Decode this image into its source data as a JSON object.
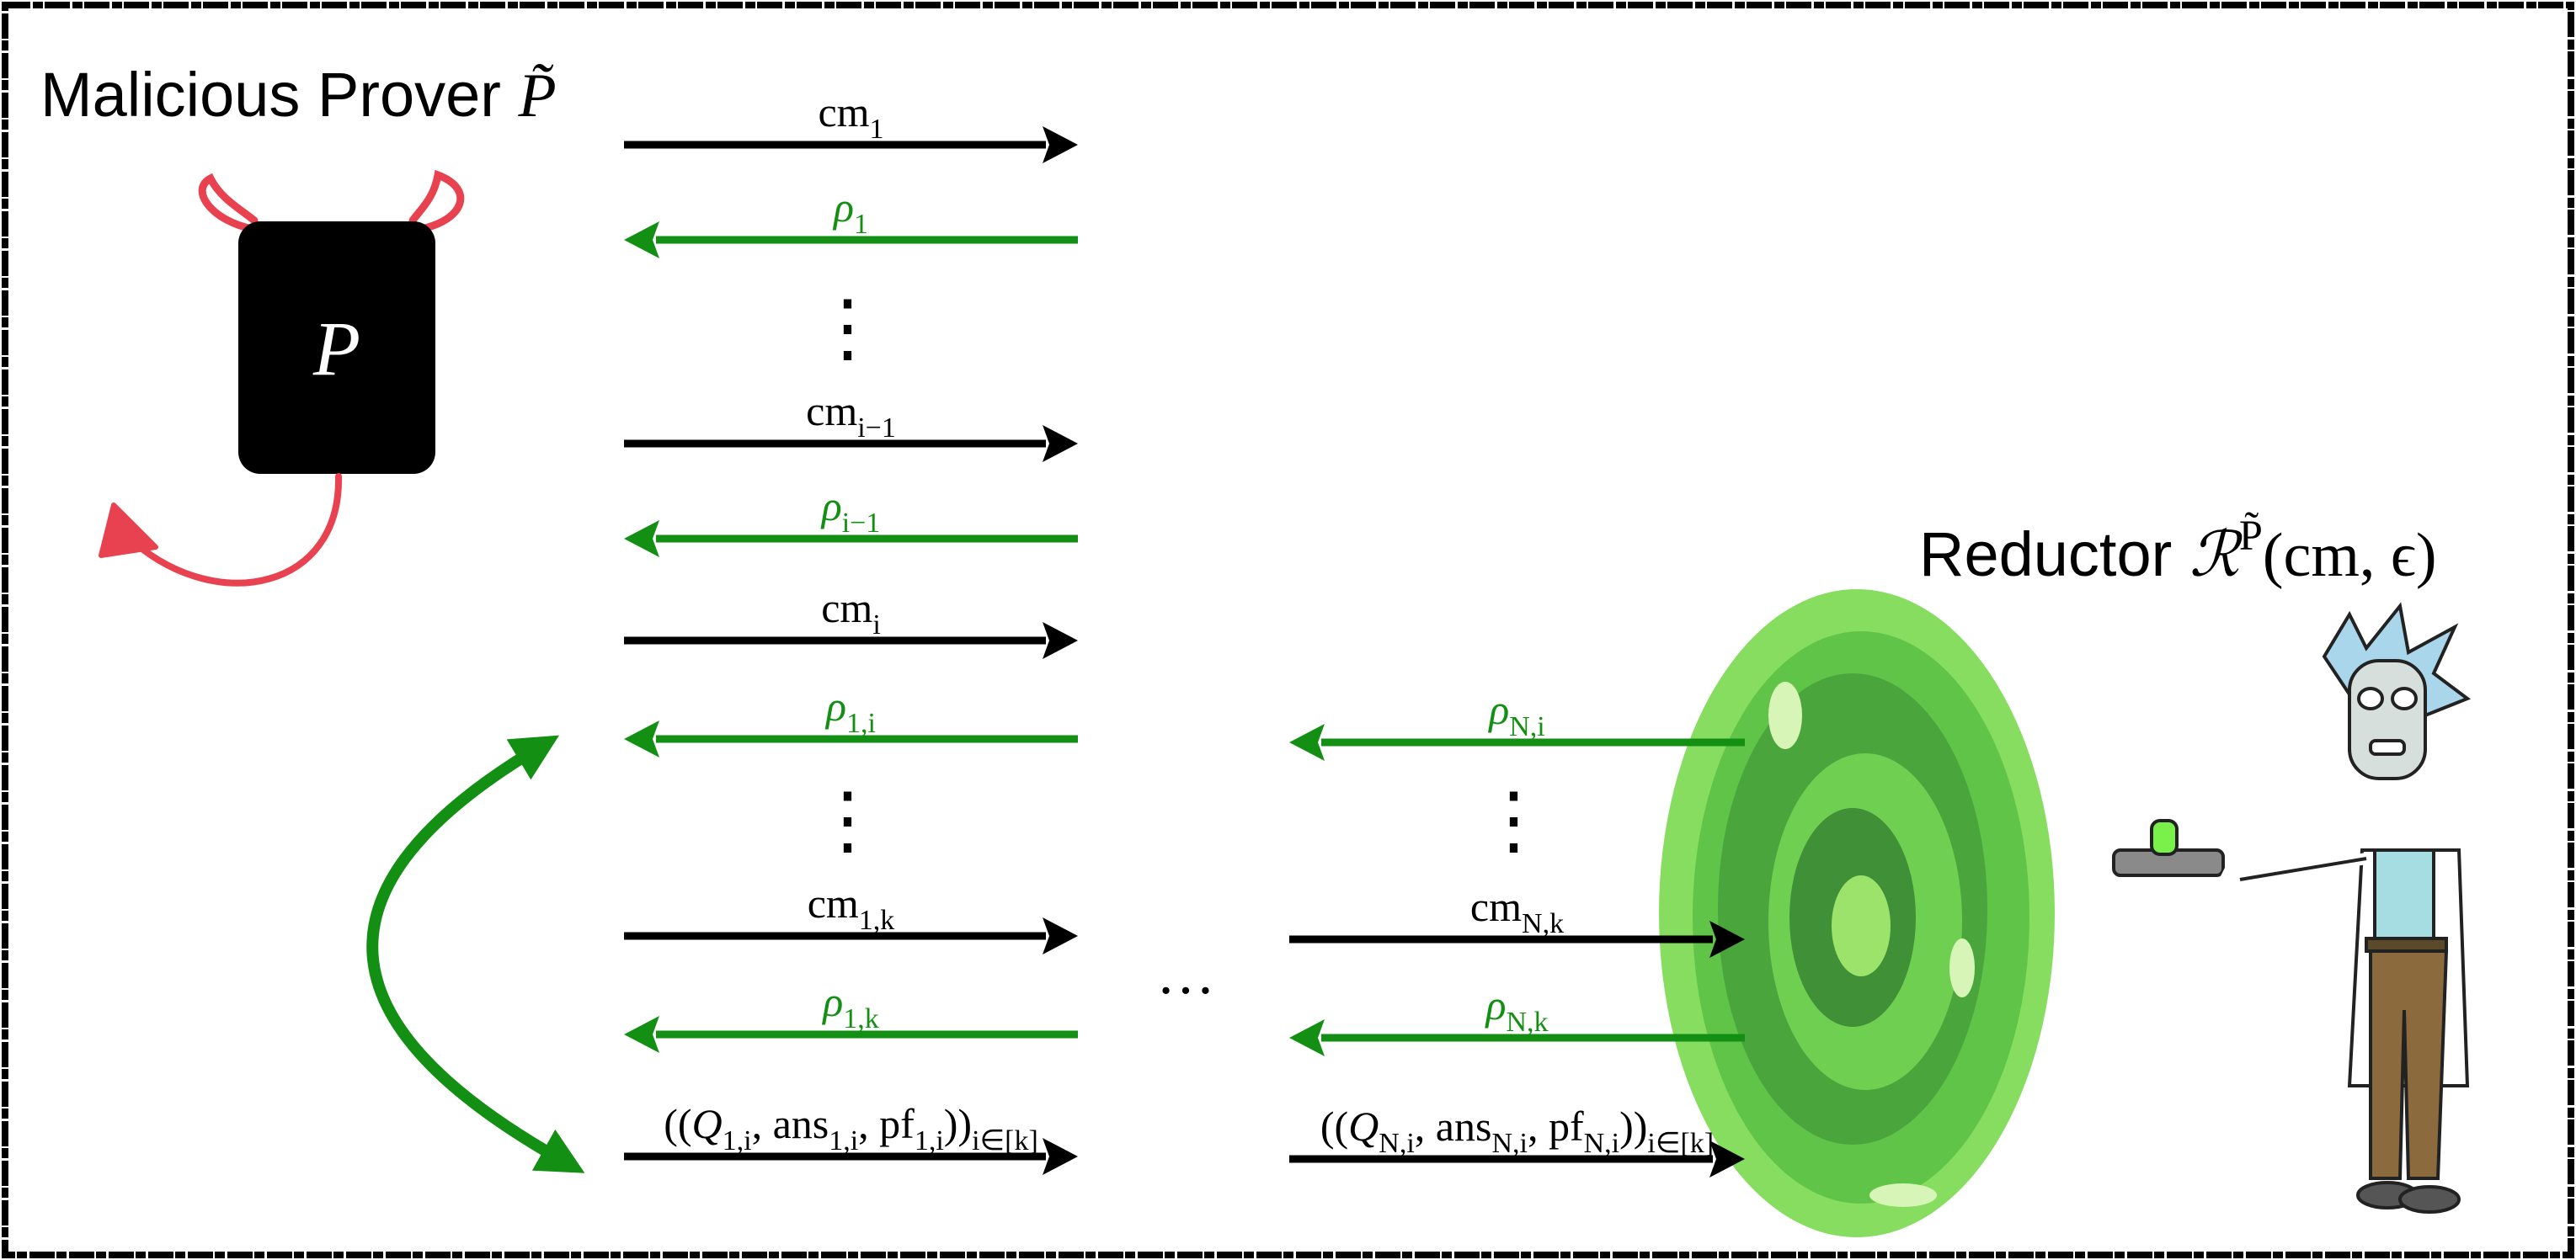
{
  "title": [
    {
      "text": "Malicious Prover ",
      "style": "sans"
    },
    {
      "text": "P̃",
      "style": "italic"
    }
  ],
  "prover_box_label": "P",
  "reductor_label": [
    {
      "text": "Reductor ",
      "style": "sans"
    },
    {
      "text": "ℛ",
      "style": "italic"
    },
    {
      "text": "P̃",
      "style": "sup"
    },
    {
      "text": "(cm, ϵ)",
      "style": "roman"
    }
  ],
  "left_column": {
    "messages": [
      {
        "color": "#000000",
        "direction": "right",
        "label": [
          {
            "text": "cm",
            "style": "roman"
          },
          {
            "text": "1",
            "style": "sub"
          }
        ]
      },
      {
        "color": "#138f13",
        "direction": "left",
        "label": [
          {
            "text": "ρ",
            "style": "italic"
          },
          {
            "text": "1",
            "style": "sub"
          }
        ]
      },
      {
        "color": "#000000",
        "direction": "right",
        "label": [
          {
            "text": "cm",
            "style": "roman"
          },
          {
            "text": "i−1",
            "style": "sub"
          }
        ]
      },
      {
        "color": "#138f13",
        "direction": "left",
        "label": [
          {
            "text": "ρ",
            "style": "italic"
          },
          {
            "text": "i−1",
            "style": "sub"
          }
        ]
      },
      {
        "color": "#000000",
        "direction": "right",
        "label": [
          {
            "text": "cm",
            "style": "roman"
          },
          {
            "text": "i",
            "style": "sub"
          }
        ]
      },
      {
        "color": "#138f13",
        "direction": "left",
        "label": [
          {
            "text": "ρ",
            "style": "italic"
          },
          {
            "text": "1,i",
            "style": "sub"
          }
        ]
      },
      {
        "color": "#000000",
        "direction": "right",
        "label": [
          {
            "text": "cm",
            "style": "roman"
          },
          {
            "text": "1,k",
            "style": "sub"
          }
        ]
      },
      {
        "color": "#138f13",
        "direction": "left",
        "label": [
          {
            "text": "ρ",
            "style": "italic"
          },
          {
            "text": "1,k",
            "style": "sub"
          }
        ]
      },
      {
        "color": "#000000",
        "direction": "right",
        "label": [
          {
            "text": "((",
            "style": "roman"
          },
          {
            "text": "Q",
            "style": "italic"
          },
          {
            "text": "1,i",
            "style": "sub"
          },
          {
            "text": ", ans",
            "style": "roman"
          },
          {
            "text": "1,i",
            "style": "sub"
          },
          {
            "text": ", pf",
            "style": "roman"
          },
          {
            "text": "1,i",
            "style": "sub"
          },
          {
            "text": "))",
            "style": "roman"
          },
          {
            "text": "i∈[k]",
            "style": "sub"
          }
        ]
      }
    ],
    "dots": [
      "⋮",
      "⋮"
    ]
  },
  "right_column": {
    "messages": [
      {
        "color": "#138f13",
        "direction": "left",
        "label": [
          {
            "text": "ρ",
            "style": "italic"
          },
          {
            "text": "N,i",
            "style": "sub"
          }
        ]
      },
      {
        "color": "#000000",
        "direction": "right",
        "label": [
          {
            "text": "cm",
            "style": "roman"
          },
          {
            "text": "N,k",
            "style": "sub"
          }
        ]
      },
      {
        "color": "#138f13",
        "direction": "left",
        "label": [
          {
            "text": "ρ",
            "style": "italic"
          },
          {
            "text": "N,k",
            "style": "sub"
          }
        ]
      },
      {
        "color": "#000000",
        "direction": "right",
        "label": [
          {
            "text": "((",
            "style": "roman"
          },
          {
            "text": "Q",
            "style": "italic"
          },
          {
            "text": "N,i",
            "style": "sub"
          },
          {
            "text": ", ans",
            "style": "roman"
          },
          {
            "text": "N,i",
            "style": "sub"
          },
          {
            "text": ", pf",
            "style": "roman"
          },
          {
            "text": "N,i",
            "style": "sub"
          },
          {
            "text": "))",
            "style": "roman"
          },
          {
            "text": "i∈[k]",
            "style": "sub"
          }
        ]
      }
    ],
    "dots": [
      "⋮"
    ]
  },
  "between_columns": "…"
}
